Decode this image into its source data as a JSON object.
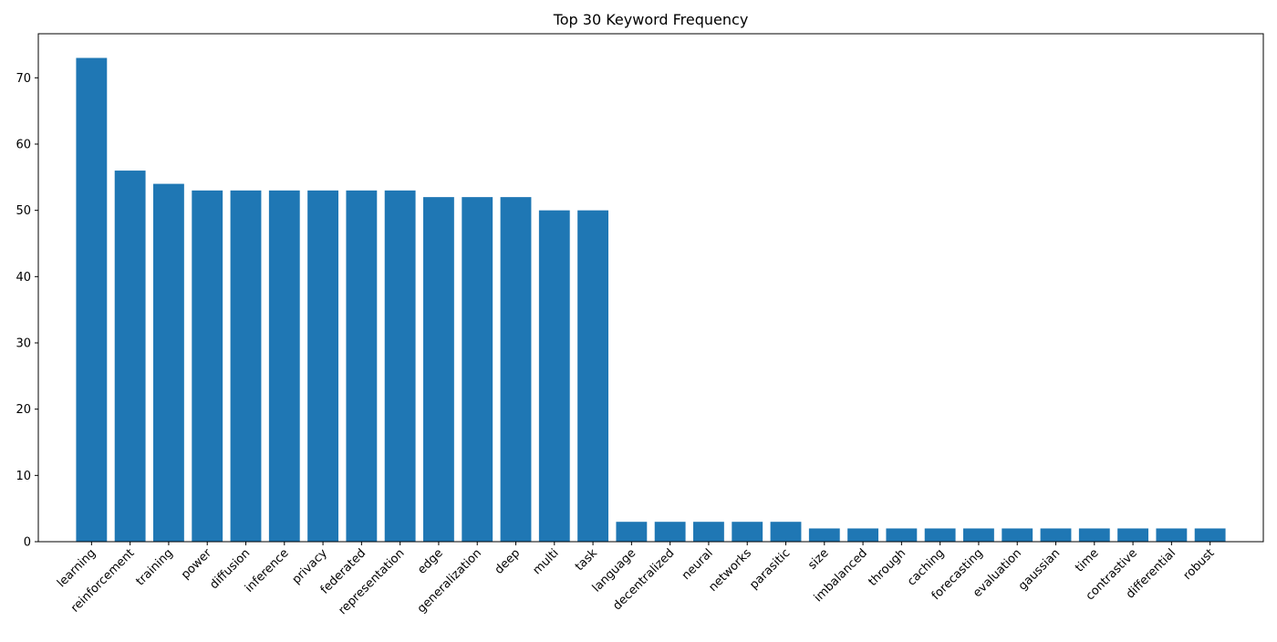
{
  "chart_data": {
    "type": "bar",
    "title": "Top 30 Keyword Frequency",
    "xlabel": "",
    "ylabel": "",
    "categories": [
      "learning",
      "reinforcement",
      "training",
      "power",
      "diffusion",
      "inference",
      "privacy",
      "federated",
      "representation",
      "edge",
      "generalization",
      "deep",
      "multi",
      "task",
      "language",
      "decentralized",
      "neural",
      "networks",
      "parasitic",
      "size",
      "imbalanced",
      "through",
      "caching",
      "forecasting",
      "evaluation",
      "gaussian",
      "time",
      "contrastive",
      "differential",
      "robust"
    ],
    "values": [
      73,
      56,
      54,
      53,
      53,
      53,
      53,
      53,
      53,
      52,
      52,
      52,
      50,
      50,
      3,
      3,
      3,
      3,
      3,
      2,
      2,
      2,
      2,
      2,
      2,
      2,
      2,
      2,
      2,
      2
    ],
    "ylim": [
      0,
      76.65
    ],
    "yticks": [
      0,
      10,
      20,
      30,
      40,
      50,
      60,
      70
    ],
    "grid": false,
    "legend": "none",
    "bar_color": "#1f77b4",
    "x_tick_rotation": "45 degrees"
  }
}
